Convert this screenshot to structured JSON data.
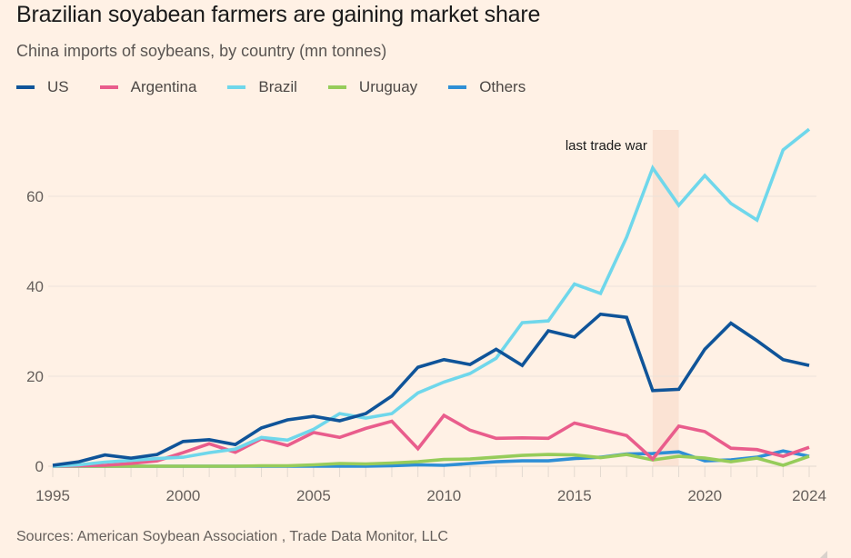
{
  "chart_data": {
    "type": "line",
    "title": "Brazilian soyabean farmers are gaining market share",
    "subtitle": "China imports of soybeans, by country (mn tonnes)",
    "xlabel": "",
    "ylabel": "",
    "x": [
      1995,
      1996,
      1997,
      1998,
      1999,
      2000,
      2001,
      2002,
      2003,
      2004,
      2005,
      2006,
      2007,
      2008,
      2009,
      2010,
      2011,
      2012,
      2013,
      2014,
      2015,
      2016,
      2017,
      2018,
      2019,
      2020,
      2021,
      2022,
      2023,
      2024
    ],
    "xlim": [
      1995,
      2024
    ],
    "ylim": [
      0,
      75
    ],
    "x_ticks": [
      1995,
      2000,
      2005,
      2010,
      2015,
      2020,
      2024
    ],
    "y_ticks": [
      0,
      20,
      40,
      60
    ],
    "grid": true,
    "legend_position": "top-left",
    "series": [
      {
        "name": "US",
        "color": "#0F5499",
        "values": [
          0.2,
          1.0,
          2.5,
          1.8,
          2.6,
          5.5,
          5.9,
          4.8,
          8.5,
          10.3,
          11.1,
          10.1,
          11.7,
          15.6,
          22.0,
          23.7,
          22.6,
          26.0,
          22.4,
          30.1,
          28.7,
          33.8,
          33.1,
          16.8,
          17.1,
          26.0,
          31.8,
          27.9,
          23.7,
          22.4
        ]
      },
      {
        "name": "Argentina",
        "color": "#E95D8C",
        "values": [
          0.0,
          0.1,
          0.2,
          0.6,
          1.2,
          3.0,
          5.0,
          3.1,
          6.1,
          4.6,
          7.5,
          6.4,
          8.4,
          10.0,
          3.9,
          11.3,
          8.0,
          6.2,
          6.3,
          6.2,
          9.6,
          8.2,
          6.8,
          1.6,
          8.9,
          7.7,
          4.0,
          3.7,
          2.2,
          4.2
        ]
      },
      {
        "name": "Brazil",
        "color": "#6FD7EB",
        "values": [
          0.0,
          0.3,
          0.9,
          1.3,
          1.7,
          2.0,
          3.0,
          3.8,
          6.4,
          5.8,
          8.2,
          11.7,
          10.7,
          11.7,
          16.3,
          18.7,
          20.6,
          24.0,
          31.9,
          32.3,
          40.5,
          38.4,
          50.9,
          66.3,
          58.0,
          64.6,
          58.4,
          54.7,
          70.3,
          74.9
        ]
      },
      {
        "name": "Uruguay",
        "color": "#96CC5A",
        "values": [
          0.0,
          0.0,
          0.0,
          0.0,
          0.0,
          0.0,
          0.0,
          0.0,
          0.1,
          0.1,
          0.3,
          0.6,
          0.5,
          0.7,
          1.0,
          1.5,
          1.6,
          2.0,
          2.4,
          2.6,
          2.5,
          1.9,
          2.6,
          1.4,
          2.2,
          1.8,
          1.0,
          1.8,
          0.2,
          2.2
        ]
      },
      {
        "name": "Others",
        "color": "#2E8FD6",
        "values": [
          0.0,
          0.0,
          0.0,
          0.0,
          0.0,
          0.0,
          0.0,
          0.0,
          0.0,
          0.0,
          0.0,
          0.0,
          0.0,
          0.1,
          0.3,
          0.2,
          0.6,
          1.0,
          1.2,
          1.2,
          1.7,
          2.0,
          2.7,
          2.8,
          3.2,
          1.2,
          1.4,
          2.0,
          3.4,
          2.2
        ]
      }
    ],
    "annotations": [
      {
        "type": "band",
        "x_start": 2018,
        "x_end": 2019,
        "label": "last trade war",
        "color": "#FBE3D4"
      }
    ],
    "source": "Sources: American Soybean Association , Trade Data Monitor, LLC"
  },
  "colors": {
    "background": "#FFF1E5",
    "grid": "#EDE3DA",
    "axis_text": "#66605c"
  }
}
